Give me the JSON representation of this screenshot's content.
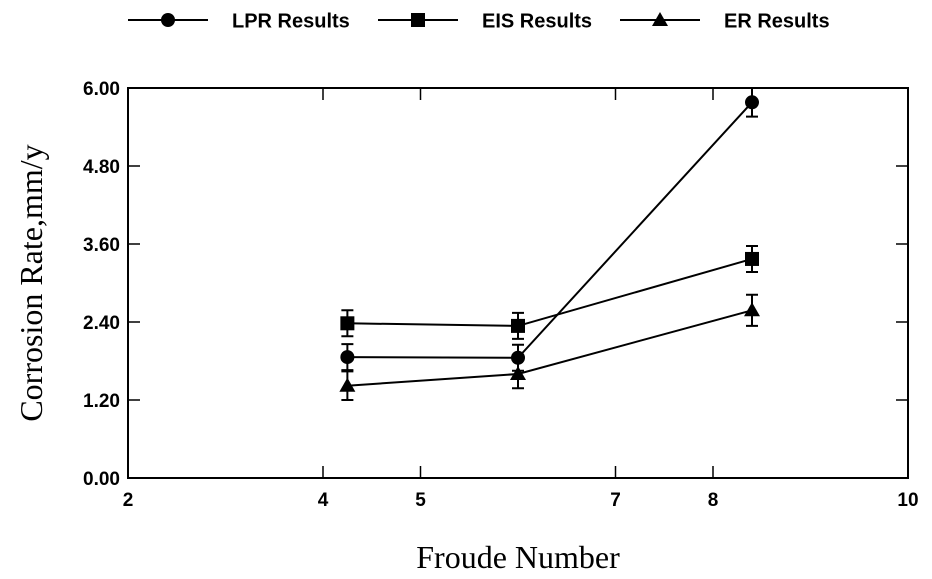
{
  "chart_data": {
    "type": "line",
    "xlabel": "Froude Number",
    "ylabel": "Corrosion Rate,mm/y",
    "x": [
      4.25,
      6.0,
      8.4
    ],
    "series": [
      {
        "name": "LPR Results",
        "color": "#000000",
        "marker": "circle",
        "values": [
          1.86,
          1.85,
          5.78
        ],
        "errors": [
          0.2,
          0.2,
          0.22
        ]
      },
      {
        "name": "EIS Results",
        "color": "#000000",
        "marker": "square",
        "values": [
          2.38,
          2.34,
          3.37
        ],
        "errors": [
          0.2,
          0.2,
          0.2
        ]
      },
      {
        "name": "ER Results",
        "color": "#000000",
        "marker": "triangle",
        "values": [
          1.42,
          1.6,
          2.58
        ],
        "errors": [
          0.22,
          0.22,
          0.24
        ]
      }
    ],
    "xlim": [
      2,
      10
    ],
    "xticks": [
      2,
      4,
      5,
      7,
      8,
      10
    ],
    "ylim": [
      0,
      6
    ],
    "yticks": [
      {
        "value": 0,
        "label": "0.00"
      },
      {
        "value": 1.2,
        "label": "1.20"
      },
      {
        "value": 2.4,
        "label": "2.40"
      },
      {
        "value": 3.6,
        "label": "3.60"
      },
      {
        "value": 4.8,
        "label": "4.80"
      },
      {
        "value": 6,
        "label": "6.00"
      }
    ],
    "legend": "top"
  }
}
